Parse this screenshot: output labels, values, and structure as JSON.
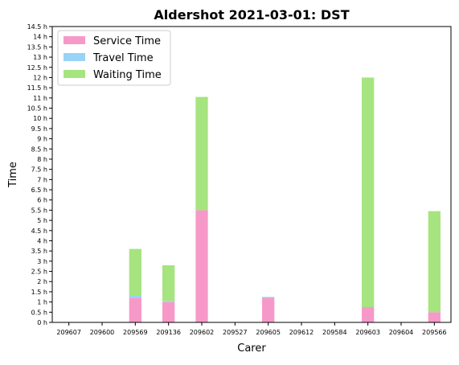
{
  "chart_data": {
    "type": "bar",
    "stacked": true,
    "title": "Aldershot 2021-03-01: DST",
    "xlabel": "Carer",
    "ylabel": "Time",
    "ylim": [
      0,
      14.5
    ],
    "ytick_step": 0.5,
    "ytick_suffix": " h",
    "categories": [
      "209607",
      "209600",
      "209569",
      "209136",
      "209602",
      "209527",
      "209605",
      "209612",
      "209584",
      "209603",
      "209604",
      "209566"
    ],
    "series": [
      {
        "name": "Service Time",
        "color": "#f799c8",
        "values": [
          0,
          0,
          1.2,
          1.0,
          5.5,
          0,
          1.2,
          0,
          0,
          0.75,
          0,
          0.5
        ]
      },
      {
        "name": "Travel Time",
        "color": "#99d3f7",
        "values": [
          0,
          0,
          0.1,
          0.05,
          0,
          0,
          0.05,
          0,
          0,
          0,
          0,
          0
        ]
      },
      {
        "name": "Waiting Time",
        "color": "#a6e47f",
        "values": [
          0,
          0,
          2.3,
          1.75,
          5.55,
          0,
          0,
          0,
          0,
          11.25,
          0,
          4.95
        ]
      }
    ],
    "legend_position": "top-left",
    "grid": false
  }
}
